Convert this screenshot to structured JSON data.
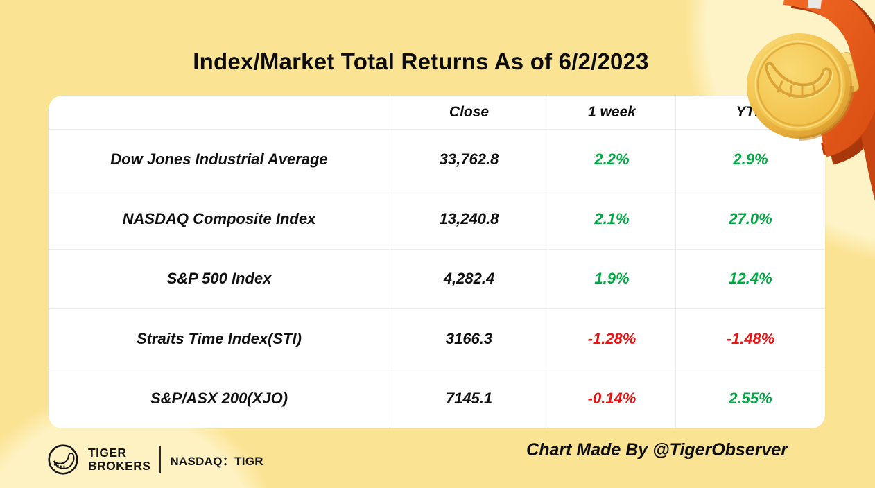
{
  "title": "Index/Market Total Returns As of 6/2/2023",
  "chart_data": {
    "type": "table",
    "title": "Index/Market Total Returns As of 6/2/2023",
    "as_of_date": "6/2/2023",
    "columns": [
      "",
      "Close",
      "1 week",
      "YTD"
    ],
    "rows": [
      {
        "name": "Dow Jones Industrial Average",
        "close": "33,762.8",
        "one_week": "2.2%",
        "ytd": "2.9%"
      },
      {
        "name": "NASDAQ Composite Index",
        "close": "13,240.8",
        "one_week": "2.1%",
        "ytd": "27.0%"
      },
      {
        "name": "S&P 500 Index",
        "close": "4,282.4",
        "one_week": "1.9%",
        "ytd": "12.4%"
      },
      {
        "name": "Straits Time Index(STI)",
        "close": "3166.3",
        "one_week": "-1.28%",
        "ytd": "-1.48%"
      },
      {
        "name": "S&P/ASX 200(XJO)",
        "close": "7145.1",
        "one_week": "-0.14%",
        "ytd": "2.55%"
      }
    ],
    "positive_color": "#00A843",
    "negative_color": "#EE1111",
    "grid": "on",
    "legend": "none"
  },
  "footer": {
    "brand_name_line1": "TIGER",
    "brand_name_line2": "BROKERS",
    "ticker": "NASDAQ：TIGR",
    "credit": "Chart Made By @TigerObserver"
  },
  "icons": {
    "tiger_logo": "tiger-tail-in-circle",
    "medal": "gold-medal-with-orange-ribbon"
  },
  "colors": {
    "background": "#FBE394",
    "background_light_blob": "#FEF3C6",
    "card": "#FFFFFF",
    "grid_line": "#EDEDED",
    "text": "#101010",
    "positive": "#00A843",
    "negative": "#EE1111",
    "ribbon_orange": "#E7571B",
    "medal_gold": "#F4C753"
  }
}
